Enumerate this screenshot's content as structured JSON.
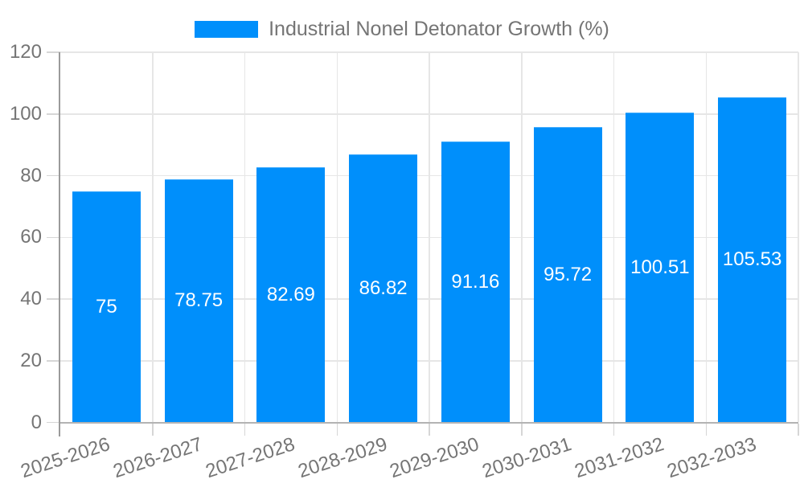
{
  "legend": {
    "label": "Industrial Nonel Detonator Growth (%)"
  },
  "chart_data": {
    "type": "bar",
    "title": "Industrial Nonel Detonator Growth (%)",
    "categories": [
      "2025-2026",
      "2026-2027",
      "2027-2028",
      "2028-2029",
      "2029-2030",
      "2030-2031",
      "2031-2032",
      "2032-2033"
    ],
    "values": [
      75,
      78.75,
      82.69,
      86.82,
      91.16,
      95.72,
      100.51,
      105.53
    ],
    "value_labels": [
      "75",
      "78.75",
      "82.69",
      "86.82",
      "91.16",
      "95.72",
      "100.51",
      "105.53"
    ],
    "xlabel": "",
    "ylabel": "",
    "ylim": [
      0,
      120
    ],
    "yticks": [
      0,
      20,
      40,
      60,
      80,
      100,
      120
    ],
    "grid": true,
    "legend_position": "top",
    "colors": {
      "bar": "#008FFB",
      "value_label": "#ffffff",
      "axis_text": "#757575",
      "gridline": "#e6e6e6",
      "axis_line": "#9a9a9a",
      "baseline": "#b3b3b3"
    }
  }
}
